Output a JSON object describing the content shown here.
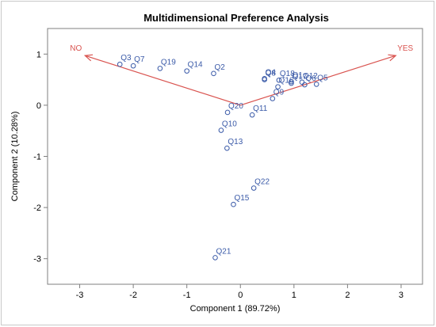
{
  "chart_data": {
    "type": "scatter",
    "title": "Multidimensional Preference Analysis",
    "xlabel": "Component 1 (89.72%)",
    "ylabel": "Component 2 (10.28%)",
    "xlim": [
      -3.6,
      3.4
    ],
    "ylim": [
      -3.5,
      1.5
    ],
    "xticks": [
      "-3",
      "-2",
      "-1",
      "0",
      "1",
      "2",
      "3"
    ],
    "yticks": [
      "1",
      "0",
      "-1",
      "-2",
      "-3"
    ],
    "grid": false,
    "colors": {
      "points": "#3a5aa8",
      "vectors": "#d9534f",
      "frame": "#7f7f7f"
    },
    "points": [
      {
        "label": "Q3",
        "x": -2.25,
        "y": 0.8
      },
      {
        "label": "Q7",
        "x": -2.0,
        "y": 0.77
      },
      {
        "label": "Q19",
        "x": -1.5,
        "y": 0.72
      },
      {
        "label": "Q14",
        "x": -1.0,
        "y": 0.67
      },
      {
        "label": "Q2",
        "x": -0.5,
        "y": 0.62
      },
      {
        "label": "Q4",
        "x": 0.45,
        "y": 0.52
      },
      {
        "label": "Q8",
        "x": 0.45,
        "y": 0.5
      },
      {
        "label": "Q18",
        "x": 0.72,
        "y": 0.49
      },
      {
        "label": "Q1",
        "x": 0.95,
        "y": 0.46
      },
      {
        "label": "Q12",
        "x": 1.15,
        "y": 0.45
      },
      {
        "label": "Q17",
        "x": 0.95,
        "y": 0.43
      },
      {
        "label": "Q6",
        "x": 1.2,
        "y": 0.4
      },
      {
        "label": "Q5",
        "x": 1.42,
        "y": 0.41
      },
      {
        "label": "Q16",
        "x": 0.7,
        "y": 0.36
      },
      {
        "label": "Q9",
        "x": 0.6,
        "y": 0.13
      },
      {
        "label": "Q11",
        "x": 0.22,
        "y": -0.19
      },
      {
        "label": "Q20",
        "x": -0.24,
        "y": -0.14
      },
      {
        "label": "Q10",
        "x": -0.36,
        "y": -0.49
      },
      {
        "label": "Q13",
        "x": -0.25,
        "y": -0.84
      },
      {
        "label": "Q22",
        "x": 0.25,
        "y": -1.62
      },
      {
        "label": "Q15",
        "x": -0.13,
        "y": -1.94
      },
      {
        "label": "Q21",
        "x": -0.47,
        "y": -2.98
      }
    ],
    "vectors": [
      {
        "label": "NO",
        "x": -2.9,
        "y": 0.97
      },
      {
        "label": "YES",
        "x": 2.9,
        "y": 0.97
      }
    ]
  }
}
